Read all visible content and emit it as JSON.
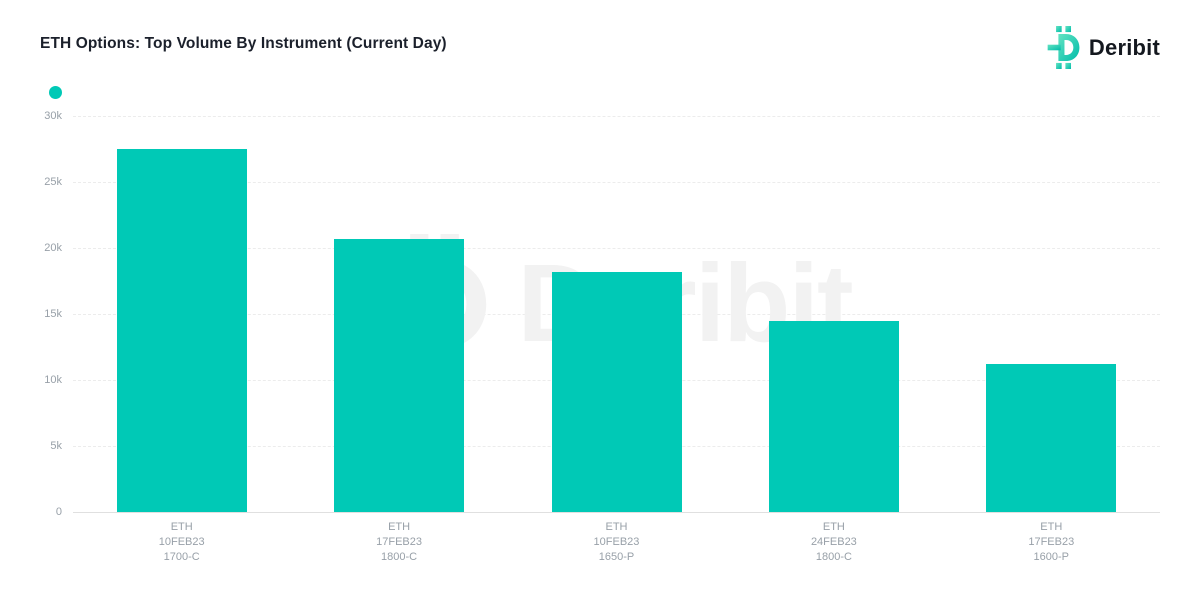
{
  "header": {
    "title": "ETH Options: Top Volume By Instrument (Current Day)",
    "brand": {
      "name": "Deribit"
    }
  },
  "legend": {
    "marker_color": "#00C9B6",
    "label": ""
  },
  "colors": {
    "bar": "#00C9B6",
    "title": "#1B202B",
    "axis_label": "#98A0A8",
    "gridline": "#ECECEC",
    "baseline": "#E0E0E0",
    "watermark": "#F2F2F2",
    "brand_text": "#14181F",
    "logo_gradient_start": "#63E3C2",
    "logo_gradient_end": "#00BCA9"
  },
  "chart_data": {
    "type": "bar",
    "title": "ETH Options: Top Volume By Instrument (Current Day)",
    "categories": [
      [
        "ETH",
        "10FEB23",
        "1700-C"
      ],
      [
        "ETH",
        "17FEB23",
        "1800-C"
      ],
      [
        "ETH",
        "10FEB23",
        "1650-P"
      ],
      [
        "ETH",
        "24FEB23",
        "1800-C"
      ],
      [
        "ETH",
        "17FEB23",
        "1600-P"
      ]
    ],
    "values": [
      27500,
      20700,
      18200,
      14500,
      11200
    ],
    "xlabel": "",
    "ylabel": "",
    "ylim": [
      0,
      30000
    ],
    "ytick_step": 5000,
    "ytick_labels": [
      "0",
      "5k",
      "10k",
      "15k",
      "20k",
      "25k",
      "30k"
    ],
    "grid": "horizontal-dashed",
    "legend_position": "top-left",
    "bar_color": "#00C9B6",
    "watermark": "Deribit"
  }
}
